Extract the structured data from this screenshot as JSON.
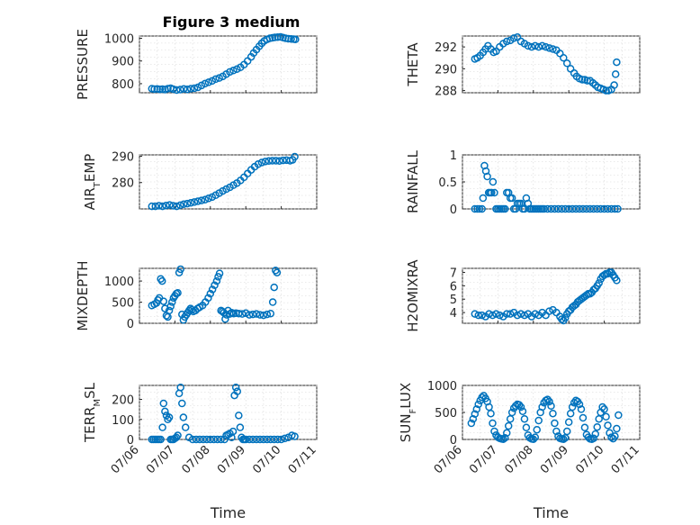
{
  "figure": {
    "title": "Figure 3 medium"
  },
  "chart_data": [
    {
      "type": "scatter",
      "ylabel": "PRESSURE",
      "yticks": [
        800,
        900,
        1000
      ],
      "ylim": [
        760,
        1010
      ],
      "xlim": [
        "07/06",
        "07/11"
      ],
      "x_tick_labels": false,
      "series": [
        {
          "t": [
            0.35,
            0.42,
            0.5,
            0.58,
            0.65,
            0.72,
            0.8,
            0.88,
            0.95,
            1.05,
            1.15,
            1.25,
            1.35,
            1.45,
            1.55,
            1.65,
            1.75,
            1.85,
            1.95,
            2.05,
            2.15,
            2.25,
            2.35,
            2.45,
            2.55,
            2.65,
            2.75,
            2.85,
            2.95,
            3.05,
            3.15,
            3.22,
            3.3,
            3.38,
            3.45,
            3.52,
            3.6,
            3.68,
            3.75,
            3.82,
            3.9,
            3.98,
            4.05,
            4.12,
            4.2,
            4.28,
            4.35,
            4.4
          ],
          "values": [
            778,
            776,
            777,
            775,
            776,
            774,
            778,
            780,
            776,
            772,
            774,
            777,
            775,
            778,
            780,
            784,
            792,
            800,
            806,
            812,
            820,
            825,
            832,
            842,
            852,
            858,
            864,
            872,
            884,
            900,
            918,
            935,
            950,
            965,
            978,
            988,
            995,
            1000,
            1002,
            1004,
            1005,
            1006,
            1003,
            1000,
            998,
            997,
            996,
            995
          ]
        }
      ]
    },
    {
      "type": "scatter",
      "ylabel": "THETA",
      "yticks": [
        288,
        290,
        292
      ],
      "ylim": [
        287.8,
        293.0
      ],
      "xlim": [
        "07/06",
        "07/11"
      ],
      "x_tick_labels": false,
      "series": [
        {
          "t": [
            0.35,
            0.42,
            0.5,
            0.58,
            0.65,
            0.72,
            0.8,
            0.88,
            0.95,
            1.05,
            1.15,
            1.25,
            1.35,
            1.45,
            1.55,
            1.65,
            1.75,
            1.85,
            1.95,
            2.05,
            2.15,
            2.25,
            2.35,
            2.45,
            2.55,
            2.65,
            2.75,
            2.85,
            2.95,
            3.05,
            3.15,
            3.22,
            3.3,
            3.38,
            3.45,
            3.52,
            3.6,
            3.68,
            3.75,
            3.82,
            3.9,
            3.98,
            4.05,
            4.12,
            4.2,
            4.28,
            4.32,
            4.35
          ],
          "values": [
            290.9,
            291.0,
            291.2,
            291.5,
            291.8,
            292.1,
            291.8,
            291.5,
            291.6,
            292.0,
            292.3,
            292.5,
            292.6,
            292.8,
            292.9,
            292.5,
            292.3,
            292.1,
            292.0,
            292.1,
            292.0,
            292.1,
            292.0,
            291.9,
            291.8,
            291.7,
            291.4,
            291.0,
            290.5,
            290.0,
            289.6,
            289.3,
            289.1,
            289.0,
            289.0,
            288.9,
            288.9,
            288.7,
            288.5,
            288.3,
            288.2,
            288.1,
            288.0,
            288.0,
            288.1,
            288.5,
            289.5,
            290.6
          ]
        }
      ]
    },
    {
      "type": "scatter",
      "ylabel": "AIR_TEMP",
      "yticks": [
        280,
        290
      ],
      "ylim": [
        270,
        290.5
      ],
      "xlim": [
        "07/06",
        "07/11"
      ],
      "x_tick_labels": false,
      "series": [
        {
          "t": [
            0.35,
            0.45,
            0.55,
            0.65,
            0.75,
            0.85,
            0.95,
            1.05,
            1.15,
            1.25,
            1.35,
            1.45,
            1.55,
            1.65,
            1.75,
            1.85,
            1.95,
            2.05,
            2.15,
            2.25,
            2.35,
            2.45,
            2.55,
            2.65,
            2.75,
            2.85,
            2.95,
            3.05,
            3.15,
            3.25,
            3.35,
            3.45,
            3.55,
            3.65,
            3.75,
            3.85,
            3.95,
            4.05,
            4.15,
            4.25,
            4.32,
            4.38
          ],
          "values": [
            271.0,
            271.0,
            271.2,
            271.0,
            271.3,
            271.5,
            271.2,
            271.0,
            271.4,
            271.8,
            272.0,
            272.3,
            272.6,
            272.9,
            273.2,
            273.5,
            274.0,
            274.5,
            275.2,
            276.0,
            276.8,
            277.5,
            278.2,
            279.0,
            279.8,
            280.8,
            282.0,
            283.4,
            284.8,
            286.0,
            287.0,
            287.6,
            288.0,
            288.2,
            288.3,
            288.3,
            288.2,
            288.4,
            288.5,
            288.3,
            288.6,
            289.8
          ]
        }
      ]
    },
    {
      "type": "scatter",
      "ylabel": "RAINFALL",
      "yticks": [
        "0",
        "0.5",
        "1"
      ],
      "ylim": [
        0,
        1.0
      ],
      "xlim": [
        "07/06",
        "07/11"
      ],
      "x_tick_labels": false,
      "series": [
        {
          "t": [
            0.35,
            0.42,
            0.48,
            0.55,
            0.58,
            0.62,
            0.66,
            0.7,
            0.74,
            0.78,
            0.82,
            0.86,
            0.9,
            0.95,
            1.0,
            1.05,
            1.1,
            1.15,
            1.2,
            1.25,
            1.3,
            1.35,
            1.4,
            1.45,
            1.5,
            1.55,
            1.6,
            1.65,
            1.7,
            1.75,
            1.8,
            1.85,
            1.9,
            1.95,
            2.0,
            2.05,
            2.1,
            2.15,
            2.2,
            2.25,
            2.3,
            2.4,
            2.5,
            2.6,
            2.7,
            2.8,
            2.9,
            3.0,
            3.1,
            3.2,
            3.3,
            3.4,
            3.5,
            3.6,
            3.7,
            3.8,
            3.9,
            4.0,
            4.1,
            4.2,
            4.3,
            4.38
          ],
          "values": [
            0,
            0,
            0,
            0,
            0.2,
            0.8,
            0.7,
            0.6,
            0.3,
            0.3,
            0.3,
            0.5,
            0.3,
            0,
            0,
            0,
            0,
            0,
            0,
            0.3,
            0.3,
            0.2,
            0.2,
            0,
            0,
            0.1,
            0.1,
            0.1,
            0,
            0,
            0.2,
            0.1,
            0,
            0,
            0,
            0,
            0,
            0,
            0,
            0,
            0,
            0,
            0,
            0,
            0,
            0,
            0,
            0,
            0,
            0,
            0,
            0,
            0,
            0,
            0,
            0,
            0,
            0,
            0,
            0,
            0,
            0
          ]
        }
      ]
    },
    {
      "type": "scatter",
      "ylabel": "MIXDEPTH",
      "yticks": [
        "0",
        "500",
        "1000"
      ],
      "ylim": [
        0,
        1300
      ],
      "xlim": [
        "07/06",
        "07/11"
      ],
      "x_tick_labels": false,
      "series": [
        {
          "t": [
            0.35,
            0.42,
            0.48,
            0.52,
            0.56,
            0.6,
            0.64,
            0.68,
            0.72,
            0.76,
            0.8,
            0.84,
            0.88,
            0.92,
            0.96,
            1.0,
            1.04,
            1.08,
            1.12,
            1.16,
            1.2,
            1.24,
            1.28,
            1.32,
            1.36,
            1.4,
            1.44,
            1.48,
            1.52,
            1.58,
            1.64,
            1.7,
            1.78,
            1.86,
            1.94,
            2.0,
            2.06,
            2.12,
            2.18,
            2.22,
            2.26,
            2.3,
            2.34,
            2.38,
            2.42,
            2.46,
            2.5,
            2.55,
            2.6,
            2.66,
            2.72,
            2.8,
            2.9,
            3.0,
            3.1,
            3.2,
            3.3,
            3.4,
            3.5,
            3.6,
            3.7,
            3.76,
            3.8,
            3.84,
            3.88
          ],
          "values": [
            420,
            450,
            480,
            550,
            600,
            1050,
            1000,
            520,
            350,
            180,
            150,
            300,
            400,
            500,
            600,
            650,
            700,
            720,
            1200,
            1280,
            210,
            80,
            150,
            200,
            250,
            300,
            350,
            320,
            280,
            300,
            350,
            380,
            420,
            500,
            600,
            700,
            800,
            900,
            1000,
            1100,
            1180,
            300,
            280,
            250,
            100,
            200,
            300,
            220,
            250,
            230,
            240,
            230,
            220,
            240,
            200,
            210,
            220,
            200,
            190,
            210,
            230,
            500,
            850,
            1250,
            1200
          ]
        }
      ]
    },
    {
      "type": "scatter",
      "ylabel": "H2OMIXRA",
      "yticks": [
        4,
        5,
        6,
        7
      ],
      "ylim": [
        3.2,
        7.3
      ],
      "xlim": [
        "07/06",
        "07/11"
      ],
      "x_tick_labels": false,
      "series": [
        {
          "t": [
            0.35,
            0.45,
            0.55,
            0.65,
            0.75,
            0.85,
            0.95,
            1.05,
            1.15,
            1.25,
            1.35,
            1.45,
            1.55,
            1.65,
            1.75,
            1.85,
            1.95,
            2.05,
            2.15,
            2.25,
            2.35,
            2.45,
            2.55,
            2.65,
            2.75,
            2.8,
            2.85,
            2.9,
            2.95,
            3.0,
            3.05,
            3.1,
            3.15,
            3.2,
            3.25,
            3.3,
            3.35,
            3.4,
            3.45,
            3.5,
            3.55,
            3.6,
            3.65,
            3.7,
            3.75,
            3.8,
            3.85,
            3.9,
            3.95,
            4.0,
            4.05,
            4.1,
            4.15,
            4.2,
            4.25,
            4.3,
            4.35
          ],
          "values": [
            3.9,
            3.8,
            3.8,
            3.7,
            3.9,
            3.8,
            3.9,
            3.8,
            3.7,
            3.9,
            3.9,
            4.0,
            3.8,
            3.9,
            3.8,
            3.9,
            3.7,
            3.9,
            3.8,
            4.0,
            3.8,
            4.1,
            4.2,
            4.0,
            3.7,
            3.5,
            3.4,
            3.6,
            3.9,
            4.1,
            4.2,
            4.4,
            4.5,
            4.6,
            4.8,
            4.9,
            5.0,
            5.1,
            5.2,
            5.3,
            5.4,
            5.4,
            5.5,
            5.7,
            5.8,
            6.0,
            6.2,
            6.5,
            6.7,
            6.8,
            6.9,
            6.9,
            7.0,
            7.0,
            6.8,
            6.6,
            6.4
          ]
        }
      ]
    },
    {
      "type": "scatter",
      "ylabel": "TERR_MSL",
      "yticks": [
        "0",
        "100",
        "200"
      ],
      "ylim": [
        0,
        270
      ],
      "xlim": [
        "07/06",
        "07/11"
      ],
      "xticks": [
        "07/06",
        "07/07",
        "07/08",
        "07/09",
        "07/10",
        "07/11"
      ],
      "xlabel": "Time",
      "series": [
        {
          "t": [
            0.35,
            0.4,
            0.45,
            0.5,
            0.55,
            0.6,
            0.65,
            0.68,
            0.72,
            0.76,
            0.8,
            0.84,
            0.88,
            0.92,
            0.96,
            1.0,
            1.04,
            1.08,
            1.12,
            1.16,
            1.2,
            1.24,
            1.3,
            1.4,
            1.5,
            1.6,
            1.7,
            1.8,
            1.9,
            2.0,
            2.1,
            2.2,
            2.3,
            2.4,
            2.45,
            2.5,
            2.55,
            2.6,
            2.64,
            2.68,
            2.72,
            2.76,
            2.8,
            2.84,
            2.88,
            2.92,
            2.96,
            3.0,
            3.1,
            3.2,
            3.3,
            3.4,
            3.5,
            3.6,
            3.7,
            3.8,
            3.9,
            4.0,
            4.1,
            4.2,
            4.3,
            4.38
          ],
          "values": [
            0,
            0,
            0,
            0,
            0,
            0,
            60,
            180,
            140,
            120,
            100,
            110,
            0,
            0,
            0,
            5,
            10,
            20,
            230,
            260,
            180,
            110,
            60,
            10,
            0,
            0,
            0,
            0,
            0,
            0,
            0,
            0,
            0,
            0,
            20,
            25,
            30,
            10,
            40,
            220,
            260,
            240,
            120,
            60,
            10,
            0,
            0,
            0,
            0,
            0,
            0,
            0,
            0,
            0,
            0,
            0,
            0,
            0,
            5,
            10,
            20,
            15
          ]
        }
      ]
    },
    {
      "type": "scatter",
      "ylabel": "SUN_FLUX",
      "yticks": [
        "0",
        "500",
        "1000"
      ],
      "ylim": [
        0,
        1000
      ],
      "xlim": [
        "07/06",
        "07/11"
      ],
      "xticks": [
        "07/06",
        "07/07",
        "07/08",
        "07/09",
        "07/10",
        "07/11"
      ],
      "xlabel": "Time",
      "series": [
        {
          "t": [
            0.25,
            0.3,
            0.35,
            0.4,
            0.45,
            0.5,
            0.55,
            0.6,
            0.65,
            0.7,
            0.75,
            0.8,
            0.85,
            0.9,
            0.95,
            1.0,
            1.05,
            1.1,
            1.15,
            1.2,
            1.25,
            1.3,
            1.35,
            1.4,
            1.45,
            1.5,
            1.55,
            1.6,
            1.65,
            1.7,
            1.75,
            1.8,
            1.85,
            1.9,
            1.95,
            2.0,
            2.05,
            2.1,
            2.15,
            2.2,
            2.25,
            2.3,
            2.35,
            2.4,
            2.45,
            2.5,
            2.55,
            2.6,
            2.65,
            2.7,
            2.75,
            2.8,
            2.85,
            2.9,
            2.95,
            3.0,
            3.05,
            3.1,
            3.15,
            3.2,
            3.25,
            3.3,
            3.35,
            3.4,
            3.45,
            3.5,
            3.55,
            3.6,
            3.65,
            3.7,
            3.75,
            3.8,
            3.85,
            3.9,
            3.95,
            4.0,
            4.05,
            4.1,
            4.15,
            4.2,
            4.25,
            4.3,
            4.35,
            4.4
          ],
          "values": [
            300,
            380,
            470,
            560,
            650,
            720,
            780,
            810,
            760,
            700,
            600,
            480,
            300,
            150,
            80,
            40,
            20,
            10,
            5,
            30,
            120,
            250,
            380,
            500,
            580,
            620,
            650,
            640,
            600,
            520,
            380,
            220,
            80,
            30,
            10,
            5,
            40,
            180,
            350,
            500,
            600,
            680,
            720,
            740,
            700,
            620,
            480,
            300,
            150,
            60,
            20,
            10,
            5,
            30,
            150,
            320,
            480,
            600,
            680,
            720,
            700,
            650,
            560,
            400,
            220,
            90,
            40,
            10,
            5,
            20,
            100,
            230,
            380,
            500,
            600,
            560,
            420,
            260,
            120,
            40,
            15,
            60,
            200,
            450
          ]
        }
      ]
    }
  ]
}
